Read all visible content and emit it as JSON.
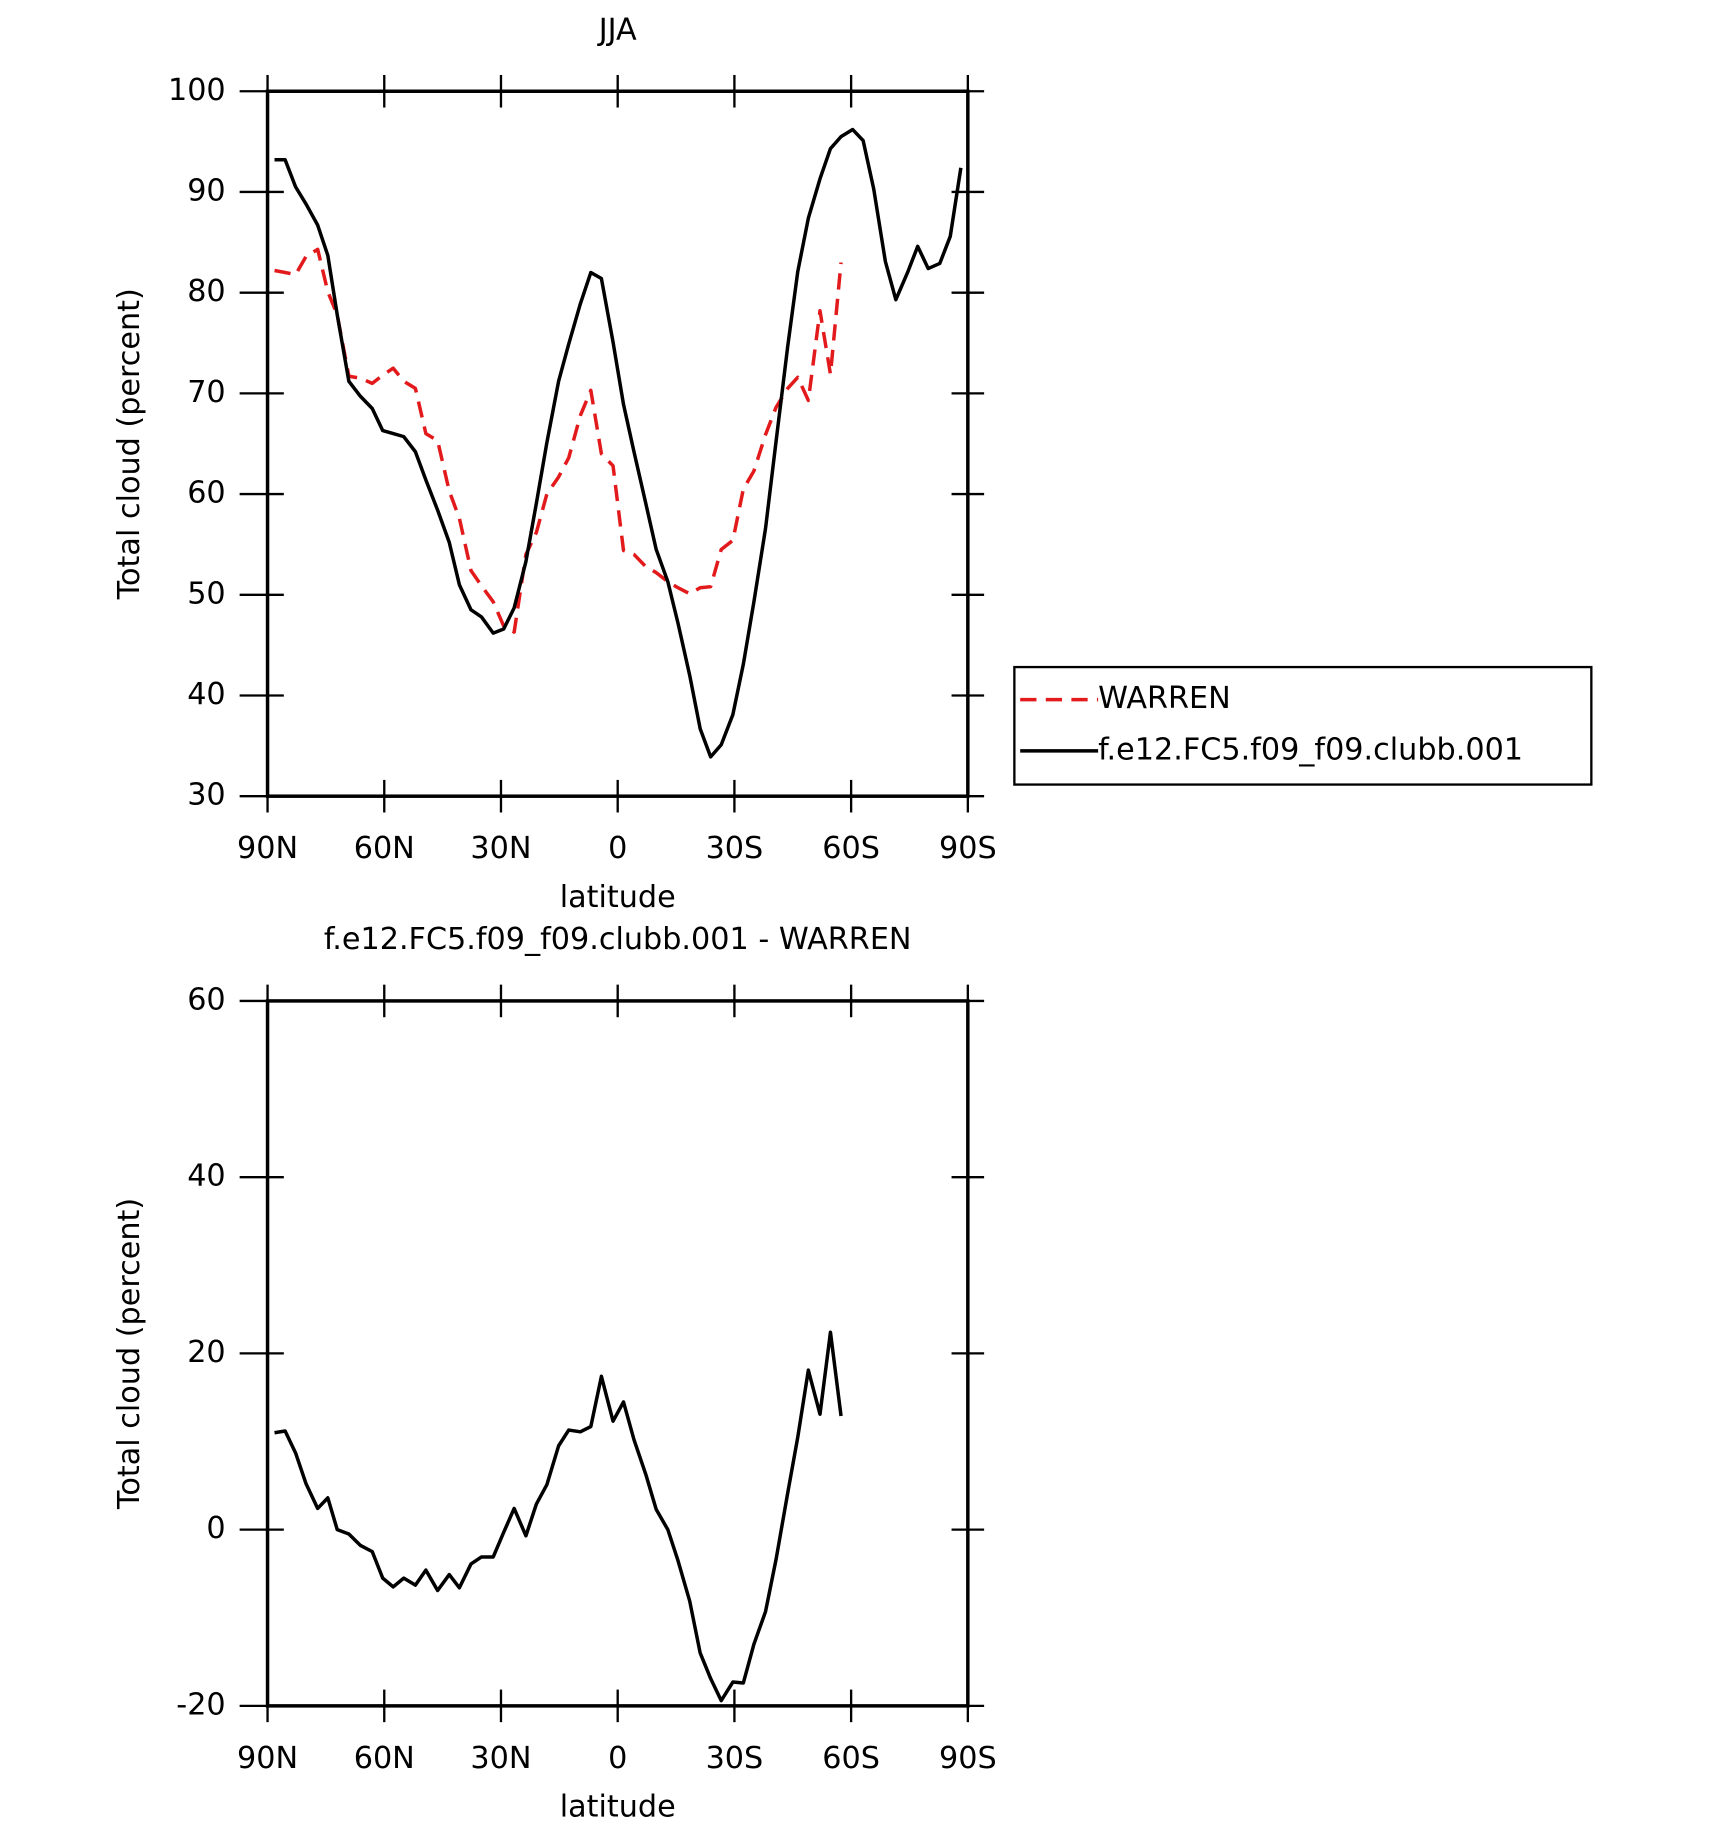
{
  "chart_data": [
    {
      "type": "line",
      "title": "JJA",
      "xlabel": "latitude",
      "ylabel": "Total cloud (percent)",
      "x": [
        88.2,
        85.5,
        82.8,
        80.1,
        77.1,
        74.5,
        72.1,
        69.1,
        66.1,
        63.1,
        60.4,
        57.7,
        55.0,
        52.0,
        49.3,
        46.3,
        43.3,
        40.7,
        37.7,
        35.0,
        32.0,
        29.3,
        26.6,
        23.6,
        20.9,
        18.2,
        15.2,
        12.6,
        9.6,
        6.9,
        4.2,
        1.2,
        -1.5,
        -4.2,
        -7.2,
        -9.9,
        -12.9,
        -15.5,
        -18.5,
        -21.2,
        -23.9,
        -26.6,
        -29.6,
        -32.3,
        -35.0,
        -38.0,
        -40.7,
        -43.7,
        -46.3,
        -49.0,
        -52.0,
        -54.7,
        -57.4,
        -60.4,
        -63.1,
        -65.8,
        -68.8,
        -71.5,
        -74.5,
        -77.1,
        -79.8,
        -82.8,
        -85.5,
        -88.2
      ],
      "series": [
        {
          "name": "WARREN",
          "color": "#e31a1c",
          "linestyle": "dashed",
          "values": [
            82.2,
            82.0,
            81.8,
            83.6,
            84.3,
            80.1,
            77.8,
            71.7,
            71.5,
            71.0,
            71.8,
            72.5,
            71.2,
            70.5,
            66.0,
            65.3,
            60.3,
            57.6,
            52.4,
            50.9,
            49.3,
            46.9,
            46.3,
            54.0,
            56.2,
            60.0,
            61.7,
            63.6,
            67.8,
            70.3,
            64.0,
            62.8,
            54.4,
            54.0,
            52.8,
            52.2,
            51.3,
            50.7,
            50.1,
            50.7,
            50.8,
            54.5,
            55.4,
            60.5,
            62.3,
            65.9,
            68.6,
            70.5,
            71.6,
            69.3,
            78.2,
            71.9,
            83.0,
            null,
            null,
            null,
            null,
            null,
            null,
            null,
            null,
            null,
            null,
            null
          ]
        },
        {
          "name": "f.e12.FC5.f09_f09.clubb.001",
          "color": "#000000",
          "linestyle": "solid",
          "values": [
            93.2,
            93.2,
            90.5,
            88.8,
            86.7,
            83.7,
            77.8,
            71.2,
            69.7,
            68.5,
            66.3,
            66.0,
            65.7,
            64.2,
            61.4,
            58.4,
            55.2,
            51.0,
            48.5,
            47.8,
            46.2,
            46.6,
            48.7,
            53.3,
            59.1,
            65.1,
            71.2,
            74.9,
            78.9,
            82.0,
            81.4,
            75.1,
            68.9,
            64.2,
            59.1,
            54.5,
            51.3,
            47.2,
            42.0,
            36.7,
            33.9,
            35.1,
            38.1,
            43.1,
            49.3,
            56.6,
            65.2,
            74.7,
            82.1,
            87.4,
            91.3,
            94.3,
            95.5,
            96.2,
            95.1,
            90.3,
            83.1,
            79.3,
            82.0,
            84.6,
            82.4,
            82.9,
            85.6,
            92.4
          ]
        }
      ],
      "xlim": [
        90,
        -90
      ],
      "xticks": [
        {
          "value": 90,
          "label": "90N"
        },
        {
          "value": 60,
          "label": "60N"
        },
        {
          "value": 30,
          "label": "30N"
        },
        0,
        {
          "value": -30,
          "label": "30S"
        },
        {
          "value": -60,
          "label": "60S"
        },
        {
          "value": -90,
          "label": "90S"
        }
      ],
      "ylim": [
        30,
        100
      ],
      "yticks": [
        30,
        40,
        50,
        60,
        70,
        80,
        90,
        100
      ],
      "legend": "right"
    },
    {
      "type": "line",
      "title": "f.e12.FC5.f09_f09.clubb.001 - WARREN",
      "xlabel": "latitude",
      "ylabel": "Total cloud (percent)",
      "x": [
        88.2,
        85.5,
        82.8,
        80.1,
        77.1,
        74.5,
        72.1,
        69.1,
        66.1,
        63.1,
        60.4,
        57.7,
        55.0,
        52.0,
        49.3,
        46.3,
        43.3,
        40.7,
        37.7,
        35.0,
        32.0,
        29.3,
        26.6,
        23.6,
        20.9,
        18.2,
        15.2,
        12.6,
        9.6,
        6.9,
        4.2,
        1.2,
        -1.5,
        -4.2,
        -7.2,
        -9.9,
        -12.9,
        -15.5,
        -18.5,
        -21.2,
        -23.9,
        -26.6,
        -29.6,
        -32.3,
        -35.0,
        -38.0,
        -40.7,
        -43.7,
        -46.3,
        -49.0,
        -52.0,
        -54.7,
        -57.4
      ],
      "series": [
        {
          "color": "#000000",
          "linestyle": "solid",
          "values": [
            11.0,
            11.2,
            8.7,
            5.2,
            2.4,
            3.6,
            0.0,
            -0.5,
            -1.8,
            -2.5,
            -5.5,
            -6.5,
            -5.5,
            -6.3,
            -4.6,
            -6.9,
            -5.1,
            -6.6,
            -3.9,
            -3.1,
            -3.1,
            -0.3,
            2.4,
            -0.7,
            2.9,
            5.1,
            9.5,
            11.3,
            11.1,
            11.7,
            17.4,
            12.3,
            14.5,
            10.2,
            6.3,
            2.3,
            0.0,
            -3.5,
            -8.1,
            -14.0,
            -16.9,
            -19.4,
            -17.3,
            -17.4,
            -13.0,
            -9.3,
            -3.4,
            4.2,
            10.5,
            18.1,
            13.1,
            22.4,
            12.9
          ]
        }
      ],
      "xlim": [
        90,
        -90
      ],
      "xticks": [
        {
          "value": 90,
          "label": "90N"
        },
        {
          "value": 60,
          "label": "60N"
        },
        {
          "value": 30,
          "label": "30N"
        },
        0,
        {
          "value": -30,
          "label": "30S"
        },
        {
          "value": -60,
          "label": "60S"
        },
        {
          "value": -90,
          "label": "90S"
        }
      ],
      "ylim": [
        -20,
        60
      ],
      "yticks": [
        -20,
        0,
        20,
        40,
        60
      ]
    }
  ]
}
